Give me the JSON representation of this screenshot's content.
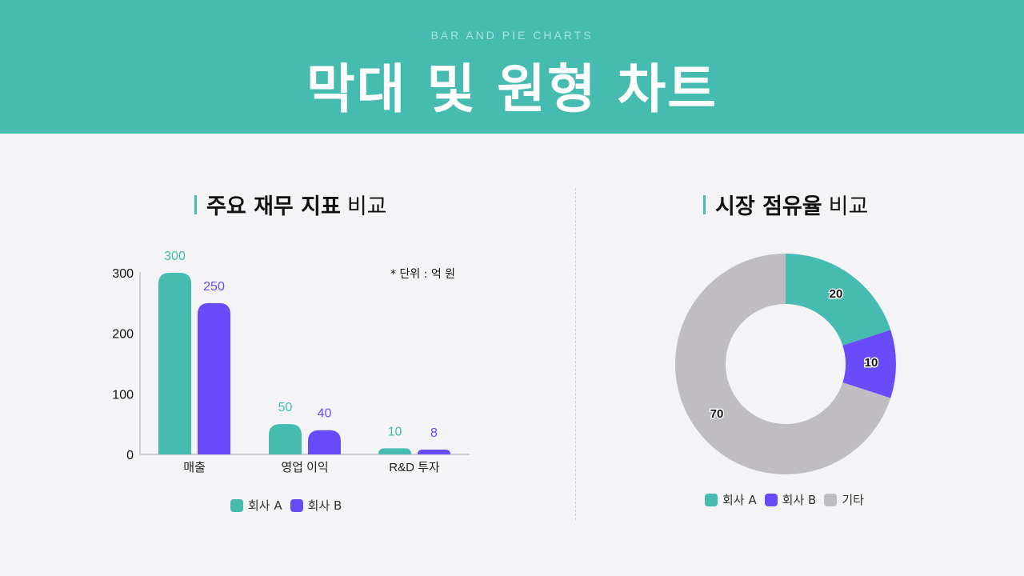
{
  "header": {
    "subtitle": "BAR AND PIE CHARTS",
    "title": "막대 및 원형 차트"
  },
  "left": {
    "title_bold": "주요 재무 지표",
    "title_light": "비교",
    "unit_note": "* 단위 : 억 원",
    "legend": [
      {
        "label": "회사 A",
        "color": "#46bcb0"
      },
      {
        "label": "회사 B",
        "color": "#6a4bfa"
      }
    ]
  },
  "right": {
    "title_bold": "시장 점유율",
    "title_light": "비교",
    "legend": [
      {
        "label": "회사 A",
        "color": "#46bcb0"
      },
      {
        "label": "회사 B",
        "color": "#6a4bfa"
      },
      {
        "label": "기타",
        "color": "#bfbdc1"
      }
    ]
  },
  "chart_data": [
    {
      "type": "bar",
      "title": "주요 재무 지표 비교",
      "categories": [
        "매출",
        "영업 이익",
        "R&D 투자"
      ],
      "series": [
        {
          "name": "회사 A",
          "values": [
            300,
            50,
            10
          ],
          "color": "#46bcb0"
        },
        {
          "name": "회사 B",
          "values": [
            250,
            40,
            8
          ],
          "color": "#6a4bfa"
        }
      ],
      "yticks": [
        0,
        100,
        200,
        300
      ],
      "ylim": [
        0,
        300
      ],
      "xlabel": "",
      "ylabel": "",
      "annotation": "* 단위 : 억 원",
      "legend_position": "bottom",
      "grid": false
    },
    {
      "type": "pie",
      "title": "시장 점유율 비교",
      "donut": true,
      "labels": [
        "회사 A",
        "회사 B",
        "기타"
      ],
      "values": [
        20,
        10,
        70
      ],
      "colors": [
        "#46bcb0",
        "#6a4bfa",
        "#bfbdc1"
      ],
      "legend_position": "bottom"
    }
  ]
}
